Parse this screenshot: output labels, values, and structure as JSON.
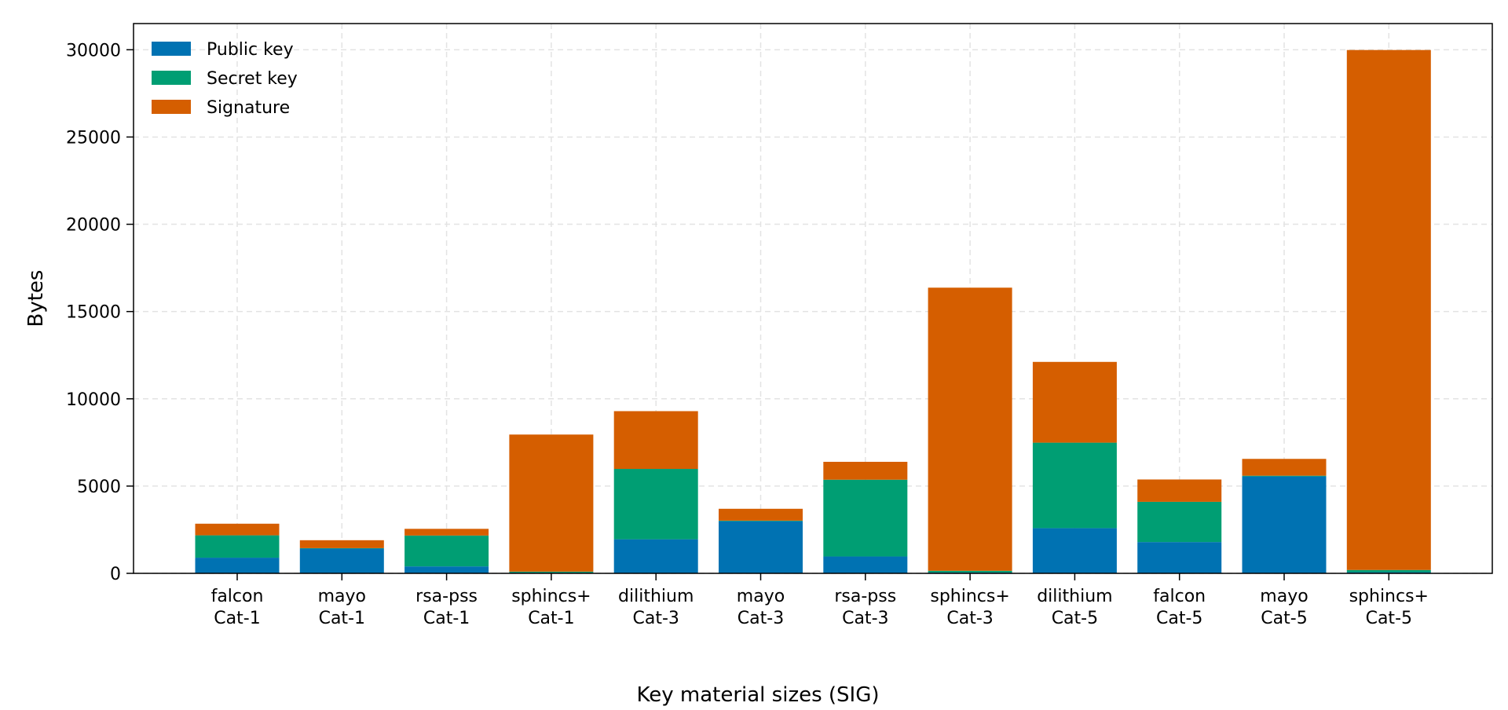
{
  "chart_data": {
    "type": "bar",
    "stacked": true,
    "title": "",
    "xlabel": "Key material sizes (SIG)",
    "ylabel": "Bytes",
    "ylim": [
      0,
      31500
    ],
    "yticks": [
      0,
      5000,
      10000,
      15000,
      20000,
      25000,
      30000
    ],
    "ytick_labels": [
      "0",
      "5000",
      "10000",
      "15000",
      "20000",
      "25000",
      "30000"
    ],
    "grid": true,
    "legend_position": "top-left",
    "categories": [
      [
        "falcon",
        "Cat-1"
      ],
      [
        "mayo",
        "Cat-1"
      ],
      [
        "rsa-pss",
        "Cat-1"
      ],
      [
        "sphincs+",
        "Cat-1"
      ],
      [
        "dilithium",
        "Cat-3"
      ],
      [
        "mayo",
        "Cat-3"
      ],
      [
        "rsa-pss",
        "Cat-3"
      ],
      [
        "sphincs+",
        "Cat-3"
      ],
      [
        "dilithium",
        "Cat-5"
      ],
      [
        "falcon",
        "Cat-5"
      ],
      [
        "mayo",
        "Cat-5"
      ],
      [
        "sphincs+",
        "Cat-5"
      ]
    ],
    "series": [
      {
        "name": "Public key",
        "color": "#0072b2",
        "values": [
          897,
          1420,
          398,
          32,
          1952,
          2986,
          966,
          48,
          2592,
          1793,
          5554,
          64
        ]
      },
      {
        "name": "Secret key",
        "color": "#009e73",
        "values": [
          1281,
          24,
          1768,
          64,
          4032,
          32,
          4400,
          96,
          4896,
          2305,
          40,
          128
        ]
      },
      {
        "name": "Signature",
        "color": "#d55e00",
        "values": [
          666,
          454,
          384,
          7856,
          3309,
          681,
          1024,
          16224,
          4627,
          1280,
          964,
          29792
        ]
      }
    ]
  }
}
